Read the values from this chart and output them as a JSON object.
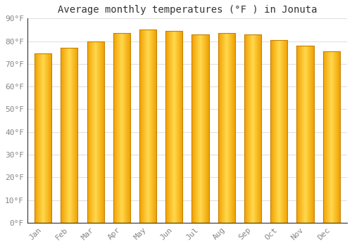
{
  "title": "Average monthly temperatures (°F ) in Jonuta",
  "months": [
    "Jan",
    "Feb",
    "Mar",
    "Apr",
    "May",
    "Jun",
    "Jul",
    "Aug",
    "Sep",
    "Oct",
    "Nov",
    "Dec"
  ],
  "values": [
    74.5,
    77.0,
    80.0,
    83.5,
    85.0,
    84.5,
    83.0,
    83.5,
    83.0,
    80.5,
    78.0,
    75.5
  ],
  "bar_color_center": "#FFD84D",
  "bar_color_edge": "#F0A000",
  "bar_edge_color": "#C88000",
  "background_color": "#FFFFFF",
  "grid_color": "#E0E0E0",
  "text_color": "#888888",
  "title_color": "#333333",
  "ylim": [
    0,
    90
  ],
  "yticks": [
    0,
    10,
    20,
    30,
    40,
    50,
    60,
    70,
    80,
    90
  ],
  "ytick_labels": [
    "0°F",
    "10°F",
    "20°F",
    "30°F",
    "40°F",
    "50°F",
    "60°F",
    "70°F",
    "80°F",
    "90°F"
  ],
  "title_fontsize": 10,
  "tick_fontsize": 8,
  "bar_width": 0.65
}
